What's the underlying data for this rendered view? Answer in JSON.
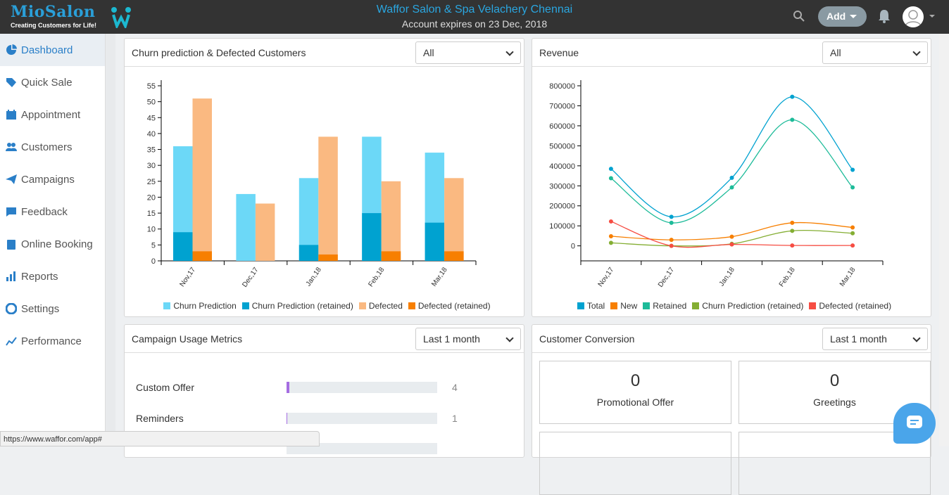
{
  "header": {
    "logo": "MioSalon",
    "tagline": "Creating Customers for Life!",
    "title": "Waffor Salon & Spa Velachery Chennai",
    "subtitle": "Account expires on 23 Dec, 2018",
    "add_label": "Add"
  },
  "sidebar": {
    "items": [
      {
        "label": "Dashboard",
        "icon": "pie-chart-icon"
      },
      {
        "label": "Quick Sale",
        "icon": "tag-icon"
      },
      {
        "label": "Appointment",
        "icon": "calendar-icon"
      },
      {
        "label": "Customers",
        "icon": "users-icon"
      },
      {
        "label": "Campaigns",
        "icon": "paper-plane-icon"
      },
      {
        "label": "Feedback",
        "icon": "comment-icon"
      },
      {
        "label": "Online Booking",
        "icon": "clipboard-icon"
      },
      {
        "label": "Reports",
        "icon": "bar-chart-icon"
      },
      {
        "label": "Settings",
        "icon": "lifebuoy-icon"
      },
      {
        "label": "Performance",
        "icon": "line-chart-icon"
      }
    ]
  },
  "churn_panel": {
    "title": "Churn prediction & Defected Customers",
    "filter": "All"
  },
  "revenue_panel": {
    "title": "Revenue",
    "filter": "All"
  },
  "campaign_panel": {
    "title": "Campaign Usage Metrics",
    "filter": "Last 1 month",
    "rows": [
      {
        "label": "Custom Offer",
        "value": "4",
        "fraction": 0.02
      },
      {
        "label": "Reminders",
        "value": "1",
        "fraction": 0.005
      }
    ]
  },
  "conversion_panel": {
    "title": "Customer Conversion",
    "filter": "Last 1 month",
    "cards": [
      {
        "value": "0",
        "label": "Promotional Offer"
      },
      {
        "value": "0",
        "label": "Greetings"
      }
    ]
  },
  "status_url": "https://www.waffor.com/app#",
  "chart_data": [
    {
      "type": "bar",
      "categories": [
        "Nov,17",
        "Dec,17",
        "Jan,18",
        "Feb,18",
        "Mar,18"
      ],
      "ylim": [
        0,
        55
      ],
      "yticks": [
        0,
        5,
        10,
        15,
        20,
        25,
        30,
        35,
        40,
        45,
        50,
        55
      ],
      "legend": "bottom",
      "series": [
        {
          "name": "Churn Prediction",
          "color": "#6cd8f7",
          "values": [
            36,
            21,
            26,
            39,
            34
          ]
        },
        {
          "name": "Churn Prediction (retained)",
          "color": "#00a2d0",
          "values": [
            9,
            0,
            5,
            15,
            12
          ]
        },
        {
          "name": "Defected",
          "color": "#fab981",
          "values": [
            51,
            18,
            39,
            25,
            26
          ]
        },
        {
          "name": "Defected (retained)",
          "color": "#f77f00",
          "values": [
            3,
            0,
            2,
            3,
            3
          ]
        }
      ]
    },
    {
      "type": "line",
      "categories": [
        "Nov,17",
        "Dec,17",
        "Jan,18",
        "Feb,18",
        "Mar,18"
      ],
      "ylim": [
        -75000,
        800000
      ],
      "yticks": [
        0,
        100000,
        200000,
        300000,
        400000,
        500000,
        600000,
        700000,
        800000
      ],
      "legend": "bottom",
      "series": [
        {
          "name": "Total",
          "color": "#00a2d0",
          "values": [
            385000,
            145000,
            340000,
            745000,
            380000
          ]
        },
        {
          "name": "New",
          "color": "#f77f00",
          "values": [
            48000,
            30000,
            46000,
            115000,
            92000
          ]
        },
        {
          "name": "Retained",
          "color": "#1dbb99",
          "values": [
            338000,
            115000,
            292000,
            630000,
            292000
          ]
        },
        {
          "name": "Churn Prediction (retained)",
          "color": "#84ae33",
          "values": [
            15000,
            0,
            10000,
            75000,
            63000
          ]
        },
        {
          "name": "Defected (retained)",
          "color": "#f64d43",
          "values": [
            122000,
            0,
            7000,
            2000,
            2000
          ]
        }
      ]
    }
  ]
}
